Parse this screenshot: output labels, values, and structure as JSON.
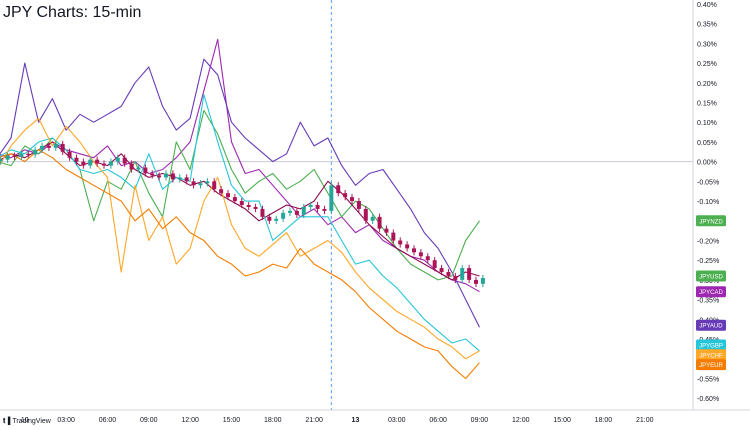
{
  "header": {
    "title": "JPY Charts: 15-min"
  },
  "watermark": {
    "text": "TradingView",
    "logo": "tradingview-logo"
  },
  "chart_data": {
    "type": "line",
    "title": "JPY Charts: 15-min",
    "xlabel": "",
    "ylabel": "",
    "y_unit": "%",
    "ylim": [
      -0.63,
      0.41
    ],
    "x_ticks": [
      "10",
      "03:00",
      "06:00",
      "09:00",
      "12:00",
      "15:00",
      "18:00",
      "21:00",
      "13",
      "03:00",
      "06:00",
      "09:00",
      "12:00",
      "15:00",
      "18:00",
      "21:00"
    ],
    "x_tick_hours": [
      0,
      3,
      6,
      9,
      12,
      15,
      18,
      21,
      24,
      27,
      30,
      33,
      36,
      39,
      42,
      45
    ],
    "x_range_hours": [
      -1.8,
      48.5
    ],
    "session_break_hour": 22.25,
    "y_ticks": [
      "0.40%",
      "0.35%",
      "0.30%",
      "0.25%",
      "0.20%",
      "0.15%",
      "0.10%",
      "0.05%",
      "0.00%",
      "-0.05%",
      "-0.10%",
      "-0.15%",
      "-0.20%",
      "-0.25%",
      "-0.30%",
      "-0.35%",
      "-0.40%",
      "-0.45%",
      "-0.50%",
      "-0.55%",
      "-0.60%"
    ],
    "y_tick_values": [
      0.4,
      0.35,
      0.3,
      0.25,
      0.2,
      0.15,
      0.1,
      0.05,
      0.0,
      -0.05,
      -0.1,
      -0.15,
      -0.2,
      -0.25,
      -0.3,
      -0.35,
      -0.4,
      -0.45,
      -0.5,
      -0.55,
      -0.6
    ],
    "zero_line": 0.0,
    "grid": false,
    "legend": "right-axis labels",
    "series": [
      {
        "name": "JPYCAD",
        "color": "#9c27b0",
        "x": [
          -2,
          -1,
          0,
          1,
          2,
          3,
          4,
          5,
          6,
          7,
          8,
          9,
          10,
          11,
          12,
          13,
          14,
          15,
          16,
          17,
          18,
          19,
          20,
          21,
          22,
          23,
          24,
          25,
          26,
          27,
          28,
          29,
          30,
          31,
          32,
          33
        ],
        "y": [
          0.02,
          0.01,
          0.03,
          0.02,
          0.05,
          0.03,
          0.02,
          0.01,
          0.04,
          -0.01,
          0.0,
          -0.03,
          -0.02,
          0.01,
          0.05,
          0.18,
          0.31,
          0.05,
          -0.03,
          -0.02,
          -0.06,
          -0.1,
          -0.14,
          -0.12,
          -0.16,
          -0.14,
          -0.18,
          -0.16,
          -0.2,
          -0.22,
          -0.24,
          -0.25,
          -0.28,
          -0.3,
          -0.31,
          -0.33
        ]
      },
      {
        "name": "JPYAUD",
        "color": "#673ab7",
        "x": [
          -2,
          -1,
          0,
          1,
          2,
          3,
          4,
          5,
          6,
          7,
          8,
          9,
          10,
          11,
          12,
          13,
          14,
          15,
          16,
          17,
          18,
          19,
          20,
          21,
          22,
          23,
          24,
          25,
          26,
          27,
          28,
          29,
          30,
          31,
          32,
          33
        ],
        "y": [
          0.01,
          0.06,
          0.25,
          0.1,
          0.16,
          0.08,
          0.12,
          0.1,
          0.12,
          0.14,
          0.2,
          0.24,
          0.14,
          0.08,
          0.11,
          0.26,
          0.22,
          0.1,
          0.06,
          0.03,
          0.0,
          0.02,
          0.1,
          0.04,
          0.06,
          -0.01,
          -0.06,
          -0.03,
          -0.02,
          -0.07,
          -0.12,
          -0.18,
          -0.22,
          -0.28,
          -0.35,
          -0.42
        ]
      },
      {
        "name": "JPYNZD",
        "color": "#4caf50",
        "x": [
          -2,
          -1,
          0,
          1,
          2,
          3,
          4,
          5,
          6,
          7,
          8,
          9,
          10,
          11,
          12,
          13,
          14,
          15,
          16,
          17,
          18,
          19,
          20,
          21,
          22,
          23,
          24,
          25,
          26,
          27,
          28,
          29,
          30,
          31,
          32,
          33
        ],
        "y": [
          0.0,
          -0.01,
          0.04,
          0.02,
          0.06,
          0.03,
          -0.02,
          -0.15,
          -0.05,
          -0.07,
          0.0,
          -0.08,
          -0.14,
          0.05,
          -0.02,
          0.13,
          0.07,
          -0.02,
          -0.08,
          -0.05,
          -0.03,
          -0.07,
          -0.05,
          -0.02,
          -0.08,
          -0.14,
          -0.1,
          -0.12,
          -0.17,
          -0.22,
          -0.26,
          -0.28,
          -0.3,
          -0.29,
          -0.2,
          -0.15
        ]
      },
      {
        "name": "JPYUSD",
        "color": "#880e4f",
        "x": [
          -2,
          -1,
          0,
          1,
          2,
          3,
          4,
          5,
          6,
          7,
          8,
          9,
          10,
          11,
          12,
          13,
          14,
          15,
          16,
          17,
          18,
          19,
          20,
          21,
          22,
          23,
          24,
          25,
          26,
          27,
          28,
          29,
          30,
          31,
          32,
          33
        ],
        "y": [
          0.0,
          0.02,
          0.01,
          0.03,
          0.05,
          0.02,
          -0.01,
          0.0,
          -0.01,
          0.02,
          -0.02,
          -0.04,
          -0.03,
          -0.04,
          -0.06,
          -0.05,
          -0.08,
          -0.1,
          -0.12,
          -0.15,
          -0.13,
          -0.11,
          -0.12,
          -0.1,
          -0.05,
          -0.08,
          -0.12,
          -0.16,
          -0.19,
          -0.22,
          -0.24,
          -0.26,
          -0.28,
          -0.3,
          -0.28,
          -0.29
        ]
      },
      {
        "name": "JPYGBP",
        "color": "#26c6da",
        "x": [
          -2,
          -1,
          0,
          1,
          2,
          3,
          4,
          5,
          6,
          7,
          8,
          9,
          10,
          11,
          12,
          13,
          14,
          15,
          16,
          17,
          18,
          19,
          20,
          21,
          22,
          23,
          24,
          25,
          26,
          27,
          28,
          29,
          30,
          31,
          32,
          33
        ],
        "y": [
          0.01,
          0.03,
          0.02,
          0.05,
          0.06,
          0.03,
          -0.02,
          -0.03,
          -0.02,
          -0.04,
          -0.07,
          0.02,
          -0.07,
          -0.04,
          -0.05,
          0.17,
          0.05,
          -0.06,
          -0.1,
          -0.1,
          -0.2,
          -0.17,
          -0.14,
          -0.14,
          -0.14,
          -0.2,
          -0.26,
          -0.25,
          -0.29,
          -0.32,
          -0.36,
          -0.4,
          -0.43,
          -0.46,
          -0.45,
          -0.48
        ]
      },
      {
        "name": "JPYCHF",
        "color": "#ffa726",
        "x": [
          -2,
          -1,
          0,
          1,
          2,
          3,
          4,
          5,
          6,
          7,
          8,
          9,
          10,
          11,
          12,
          13,
          14,
          15,
          16,
          17,
          18,
          19,
          20,
          21,
          22,
          23,
          24,
          25,
          26,
          27,
          28,
          29,
          30,
          31,
          32,
          33
        ],
        "y": [
          -0.02,
          0.04,
          0.08,
          0.11,
          0.04,
          0.09,
          0.05,
          0.0,
          -0.04,
          -0.28,
          -0.06,
          -0.2,
          -0.14,
          -0.26,
          -0.22,
          -0.1,
          -0.04,
          -0.16,
          -0.22,
          -0.24,
          -0.21,
          -0.18,
          -0.24,
          -0.22,
          -0.2,
          -0.23,
          -0.28,
          -0.32,
          -0.35,
          -0.38,
          -0.4,
          -0.42,
          -0.45,
          -0.47,
          -0.5,
          -0.48
        ]
      },
      {
        "name": "JPYEUR",
        "color": "#f57c00",
        "x": [
          -2,
          -1,
          0,
          1,
          2,
          3,
          4,
          5,
          6,
          7,
          8,
          9,
          10,
          11,
          12,
          13,
          14,
          15,
          16,
          17,
          18,
          19,
          20,
          21,
          22,
          23,
          24,
          25,
          26,
          27,
          28,
          29,
          30,
          31,
          32,
          33
        ],
        "y": [
          0.01,
          0.02,
          0.0,
          0.03,
          0.01,
          -0.02,
          -0.04,
          -0.06,
          -0.08,
          -0.1,
          -0.15,
          -0.12,
          -0.17,
          -0.14,
          -0.18,
          -0.2,
          -0.24,
          -0.26,
          -0.29,
          -0.28,
          -0.26,
          -0.27,
          -0.22,
          -0.26,
          -0.28,
          -0.3,
          -0.33,
          -0.37,
          -0.4,
          -0.43,
          -0.45,
          -0.47,
          -0.48,
          -0.52,
          -0.55,
          -0.51
        ]
      }
    ],
    "candles": {
      "name": "JPYUSD",
      "up_color": "#26a69a",
      "down_color": "#ad1457",
      "x": [
        -1.75,
        -1.25,
        -0.75,
        -0.25,
        0.25,
        0.75,
        1.25,
        1.75,
        2.25,
        2.75,
        3.25,
        3.75,
        4.25,
        4.75,
        5.25,
        5.75,
        6.25,
        6.75,
        7.25,
        7.75,
        8.25,
        8.75,
        9.25,
        9.75,
        10.25,
        10.75,
        11.25,
        11.75,
        12.25,
        12.75,
        13.25,
        13.75,
        14.25,
        14.75,
        15.25,
        15.75,
        16.25,
        16.75,
        17.25,
        17.75,
        18.25,
        18.75,
        19.25,
        19.75,
        20.25,
        20.75,
        21.25,
        21.75,
        22.25,
        22.75,
        23.25,
        23.75,
        24.25,
        24.75,
        25.25,
        25.75,
        26.25,
        26.75,
        27.25,
        27.75,
        28.25,
        28.75,
        29.25,
        29.75,
        30.25,
        30.75,
        31.25,
        31.75,
        32.25,
        32.75,
        33.25
      ],
      "close": [
        0.005,
        0.015,
        0.012,
        0.02,
        0.018,
        0.03,
        0.04,
        0.035,
        0.045,
        0.025,
        0.01,
        0.0,
        -0.01,
        0.005,
        -0.005,
        -0.01,
        0.0,
        0.01,
        -0.005,
        -0.02,
        -0.015,
        -0.03,
        -0.035,
        -0.04,
        -0.03,
        -0.045,
        -0.04,
        -0.05,
        -0.06,
        -0.055,
        -0.05,
        -0.07,
        -0.08,
        -0.09,
        -0.1,
        -0.11,
        -0.115,
        -0.12,
        -0.14,
        -0.15,
        -0.145,
        -0.13,
        -0.125,
        -0.135,
        -0.115,
        -0.11,
        -0.12,
        -0.125,
        -0.06,
        -0.08,
        -0.09,
        -0.1,
        -0.12,
        -0.15,
        -0.14,
        -0.17,
        -0.18,
        -0.2,
        -0.21,
        -0.22,
        -0.23,
        -0.24,
        -0.25,
        -0.27,
        -0.28,
        -0.29,
        -0.3,
        -0.27,
        -0.3,
        -0.31,
        -0.295
      ]
    },
    "labels": [
      {
        "text": "JPYNZD",
        "value": -0.15,
        "color": "#4caf50"
      },
      {
        "text": "JPYUSD",
        "value": -0.29,
        "color": "#4caf50"
      },
      {
        "text": "JPYCAD",
        "value": -0.33,
        "color": "#9c27b0"
      },
      {
        "text": "JPYAUD",
        "value": -0.415,
        "color": "#673ab7"
      },
      {
        "text": "JPYGBP",
        "value": -0.465,
        "color": "#26c6da"
      },
      {
        "text": "JPYCHF",
        "value": -0.49,
        "color": "#ffa726"
      },
      {
        "text": "JPYEUR",
        "value": -0.515,
        "color": "#f57c00"
      }
    ]
  }
}
